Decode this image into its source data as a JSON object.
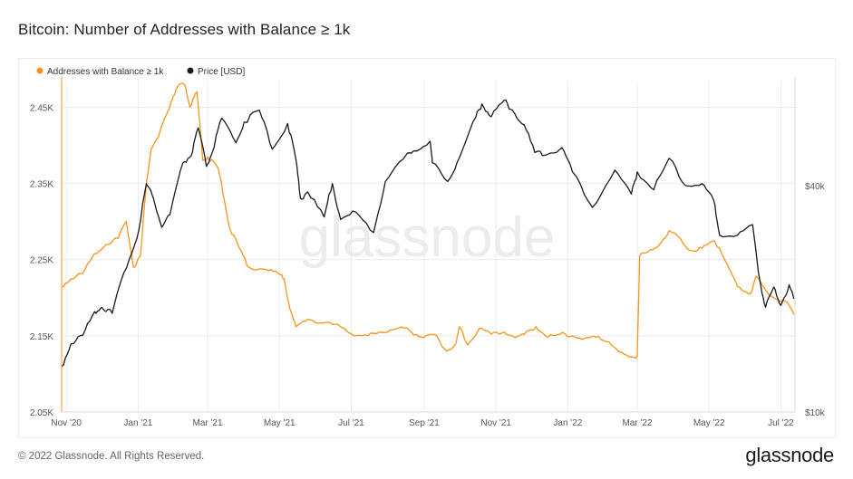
{
  "header": {
    "title": "Bitcoin: Number of Addresses with Balance ≥ 1k"
  },
  "footer": {
    "copyright": "© 2022 Glassnode. All Rights Reserved.",
    "brand": "glassnode"
  },
  "watermark": "glassnode",
  "colors": {
    "addresses": "#f7931a",
    "price": "#1a1a1a",
    "grid": "#ececec",
    "axis_text": "#555555",
    "watermark": "#ececec"
  },
  "chart_data": {
    "type": "line",
    "title": "Bitcoin: Number of Addresses with Balance ≥ 1k",
    "x_ticks": [
      "Nov '20",
      "Jan '21",
      "Mar '21",
      "May '21",
      "Jul '21",
      "Sep '21",
      "Nov '21",
      "Jan '22",
      "Mar '22",
      "May '22",
      "Jul '22"
    ],
    "y_left_ticks": [
      "2.45K",
      "2.35K",
      "2.25K",
      "2.15K",
      "2.05K"
    ],
    "y_right_ticks": [
      "$40k",
      "$10k"
    ],
    "y_left_range": [
      2050,
      2485
    ],
    "y_right_scale": "log",
    "grid": true,
    "legend_position": "top-left",
    "series": [
      {
        "name": "Addresses with Balance ≥ 1k",
        "axis": "left",
        "color": "#f7931a",
        "points": [
          [
            "2020-10-28",
            2215
          ],
          [
            "2020-11-05",
            2225
          ],
          [
            "2020-11-15",
            2232
          ],
          [
            "2020-11-25",
            2258
          ],
          [
            "2020-12-05",
            2270
          ],
          [
            "2020-12-15",
            2278
          ],
          [
            "2020-12-22",
            2300
          ],
          [
            "2020-12-28",
            2240
          ],
          [
            "2021-01-03",
            2255
          ],
          [
            "2021-01-08",
            2350
          ],
          [
            "2021-01-12",
            2395
          ],
          [
            "2021-01-18",
            2410
          ],
          [
            "2021-01-25",
            2440
          ],
          [
            "2021-01-31",
            2465
          ],
          [
            "2021-02-05",
            2480
          ],
          [
            "2021-02-10",
            2478
          ],
          [
            "2021-02-14",
            2450
          ],
          [
            "2021-02-20",
            2470
          ],
          [
            "2021-02-25",
            2380
          ],
          [
            "2021-03-01",
            2385
          ],
          [
            "2021-03-10",
            2370
          ],
          [
            "2021-03-15",
            2330
          ],
          [
            "2021-03-20",
            2290
          ],
          [
            "2021-03-28",
            2265
          ],
          [
            "2021-04-05",
            2240
          ],
          [
            "2021-04-20",
            2237
          ],
          [
            "2021-04-30",
            2232
          ],
          [
            "2021-05-05",
            2225
          ],
          [
            "2021-05-10",
            2185
          ],
          [
            "2021-05-15",
            2162
          ],
          [
            "2021-05-25",
            2172
          ],
          [
            "2021-06-05",
            2167
          ],
          [
            "2021-06-15",
            2165
          ],
          [
            "2021-06-25",
            2160
          ],
          [
            "2021-07-05",
            2150
          ],
          [
            "2021-07-15",
            2150
          ],
          [
            "2021-07-25",
            2155
          ],
          [
            "2021-08-05",
            2158
          ],
          [
            "2021-08-15",
            2160
          ],
          [
            "2021-08-25",
            2152
          ],
          [
            "2021-09-01",
            2148
          ],
          [
            "2021-09-10",
            2152
          ],
          [
            "2021-09-20",
            2130
          ],
          [
            "2021-09-28",
            2140
          ],
          [
            "2021-10-01",
            2162
          ],
          [
            "2021-10-08",
            2138
          ],
          [
            "2021-10-18",
            2160
          ],
          [
            "2021-10-28",
            2152
          ],
          [
            "2021-11-08",
            2155
          ],
          [
            "2021-11-18",
            2148
          ],
          [
            "2021-11-25",
            2152
          ],
          [
            "2021-12-05",
            2162
          ],
          [
            "2021-12-15",
            2148
          ],
          [
            "2021-12-25",
            2152
          ],
          [
            "2022-01-05",
            2150
          ],
          [
            "2022-01-15",
            2146
          ],
          [
            "2022-01-25",
            2148
          ],
          [
            "2022-02-05",
            2142
          ],
          [
            "2022-02-15",
            2128
          ],
          [
            "2022-02-22",
            2122
          ],
          [
            "2022-03-01",
            2123
          ],
          [
            "2022-03-03",
            2255
          ],
          [
            "2022-03-10",
            2260
          ],
          [
            "2022-03-20",
            2270
          ],
          [
            "2022-03-28",
            2288
          ],
          [
            "2022-04-05",
            2280
          ],
          [
            "2022-04-15",
            2262
          ],
          [
            "2022-04-25",
            2265
          ],
          [
            "2022-05-05",
            2275
          ],
          [
            "2022-05-10",
            2265
          ],
          [
            "2022-05-18",
            2238
          ],
          [
            "2022-05-25",
            2215
          ],
          [
            "2022-06-05",
            2205
          ],
          [
            "2022-06-10",
            2228
          ],
          [
            "2022-06-18",
            2210
          ],
          [
            "2022-06-25",
            2200
          ],
          [
            "2022-07-05",
            2195
          ],
          [
            "2022-07-12",
            2178
          ]
        ]
      },
      {
        "name": "Price [USD]",
        "axis": "right",
        "color": "#1a1a1a",
        "points": [
          [
            "2020-10-28",
            13200
          ],
          [
            "2020-11-05",
            15200
          ],
          [
            "2020-11-15",
            16000
          ],
          [
            "2020-11-25",
            18500
          ],
          [
            "2020-12-01",
            19000
          ],
          [
            "2020-12-10",
            18300
          ],
          [
            "2020-12-20",
            23500
          ],
          [
            "2020-12-31",
            29000
          ],
          [
            "2021-01-08",
            40500
          ],
          [
            "2021-01-14",
            37000
          ],
          [
            "2021-01-21",
            31000
          ],
          [
            "2021-01-28",
            33500
          ],
          [
            "2021-02-08",
            46000
          ],
          [
            "2021-02-15",
            48000
          ],
          [
            "2021-02-21",
            57000
          ],
          [
            "2021-02-28",
            45000
          ],
          [
            "2021-03-05",
            49000
          ],
          [
            "2021-03-13",
            60500
          ],
          [
            "2021-03-25",
            52000
          ],
          [
            "2021-04-01",
            59000
          ],
          [
            "2021-04-14",
            63500
          ],
          [
            "2021-04-25",
            50000
          ],
          [
            "2021-05-08",
            58500
          ],
          [
            "2021-05-15",
            47000
          ],
          [
            "2021-05-19",
            37000
          ],
          [
            "2021-05-25",
            38500
          ],
          [
            "2021-06-08",
            33000
          ],
          [
            "2021-06-15",
            40500
          ],
          [
            "2021-06-22",
            32500
          ],
          [
            "2021-07-05",
            34000
          ],
          [
            "2021-07-20",
            30000
          ],
          [
            "2021-07-30",
            41000
          ],
          [
            "2021-08-14",
            47000
          ],
          [
            "2021-08-23",
            49500
          ],
          [
            "2021-09-06",
            52500
          ],
          [
            "2021-09-08",
            46000
          ],
          [
            "2021-09-21",
            41000
          ],
          [
            "2021-10-01",
            47500
          ],
          [
            "2021-10-15",
            61000
          ],
          [
            "2021-10-20",
            66000
          ],
          [
            "2021-10-28",
            61000
          ],
          [
            "2021-11-08",
            67500
          ],
          [
            "2021-11-15",
            63500
          ],
          [
            "2021-11-25",
            58000
          ],
          [
            "2021-12-04",
            49000
          ],
          [
            "2021-12-15",
            48500
          ],
          [
            "2021-12-27",
            50500
          ],
          [
            "2022-01-05",
            43500
          ],
          [
            "2022-01-22",
            35000
          ],
          [
            "2022-02-10",
            44000
          ],
          [
            "2022-02-24",
            38000
          ],
          [
            "2022-03-01",
            43500
          ],
          [
            "2022-03-15",
            39000
          ],
          [
            "2022-03-28",
            47300
          ],
          [
            "2022-04-11",
            40000
          ],
          [
            "2022-04-25",
            40500
          ],
          [
            "2022-05-05",
            36500
          ],
          [
            "2022-05-10",
            29500
          ],
          [
            "2022-05-25",
            29500
          ],
          [
            "2022-06-07",
            31500
          ],
          [
            "2022-06-13",
            22500
          ],
          [
            "2022-06-18",
            19000
          ],
          [
            "2022-06-25",
            21500
          ],
          [
            "2022-07-01",
            19200
          ],
          [
            "2022-07-08",
            21800
          ],
          [
            "2022-07-12",
            20000
          ]
        ]
      }
    ]
  }
}
